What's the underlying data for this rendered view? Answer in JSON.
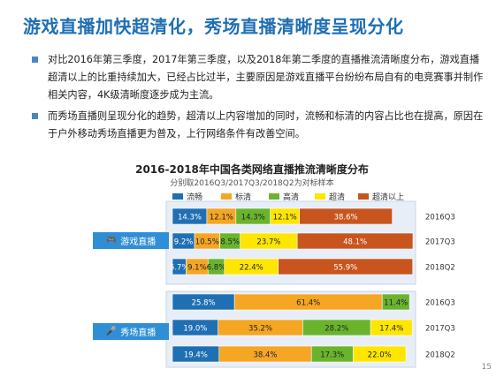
{
  "page": {
    "title": "游戏直播加快超清化，秀场直播清晰度呈现分化",
    "bullets": [
      "对比2016年第三季度，2017年第三季度，以及2018年第二季度的直播推流清晰度分布，游戏直播超清以上的比重持续加大，已经占比过半，主要原因是游戏直播平台纷纷布局自有的电竞赛事并制作相关内容，4K级清晰度逐步成为主流。",
      "而秀场直播则呈现分化的趋势，超清以上内容增加的同时，流畅和标清的内容占比也在提高，原因在于户外移动秀场直播更为普及，上行网络条件有改善空间。"
    ],
    "page_number": "15"
  },
  "icons": {
    "game": "gamepad-icon",
    "show": "microphone-icon"
  },
  "chart_data": {
    "type": "bar",
    "stacked": true,
    "orientation": "horizontal",
    "title": "2016-2018年中国各类网络直播推流清晰度分布",
    "subtitle": "分别取2016Q3/2017Q3/2018Q2为对标样本",
    "legend_position": "top",
    "legend": [
      "流畅",
      "标清",
      "高清",
      "超清",
      "超清以上"
    ],
    "colors": [
      "#1f6fb3",
      "#f5a623",
      "#6ab42d",
      "#ffe600",
      "#c8551e"
    ],
    "groups": [
      {
        "name": "游戏直播",
        "rows": [
          {
            "period": "2016Q3",
            "values": [
              14.3,
              12.1,
              14.3,
              12.1,
              38.6
            ]
          },
          {
            "period": "2017Q3",
            "values": [
              9.2,
              10.5,
              8.5,
              23.7,
              48.1
            ]
          },
          {
            "period": "2018Q2",
            "values": [
              5.7,
              9.1,
              6.8,
              22.4,
              55.9
            ]
          }
        ]
      },
      {
        "name": "秀场直播",
        "rows": [
          {
            "period": "2016Q3",
            "values": [
              25.8,
              61.4,
              11.4,
              0,
              0
            ]
          },
          {
            "period": "2017Q3",
            "values": [
              19.0,
              35.2,
              28.2,
              17.4,
              0
            ]
          },
          {
            "period": "2018Q2",
            "values": [
              19.4,
              38.4,
              17.3,
              22.0,
              0
            ]
          }
        ]
      }
    ],
    "value_labels": [
      [
        "14.3%",
        "12.1%",
        "14.3%",
        "12.1%",
        "38.6%"
      ],
      [
        "9.2%",
        "10.5%",
        "8.5%",
        "23.7%",
        "48.1%"
      ],
      [
        "5.7%",
        "9.1%",
        "6.8%",
        "22.4%",
        "55.9%"
      ],
      [
        "25.8%",
        "61.4%",
        "11.4%",
        "",
        ""
      ],
      [
        "19.0%",
        "35.2%",
        "28.2%",
        "17.4%",
        ""
      ],
      [
        "19.4%",
        "38.4%",
        "17.3%",
        "22.0%",
        ""
      ]
    ]
  }
}
